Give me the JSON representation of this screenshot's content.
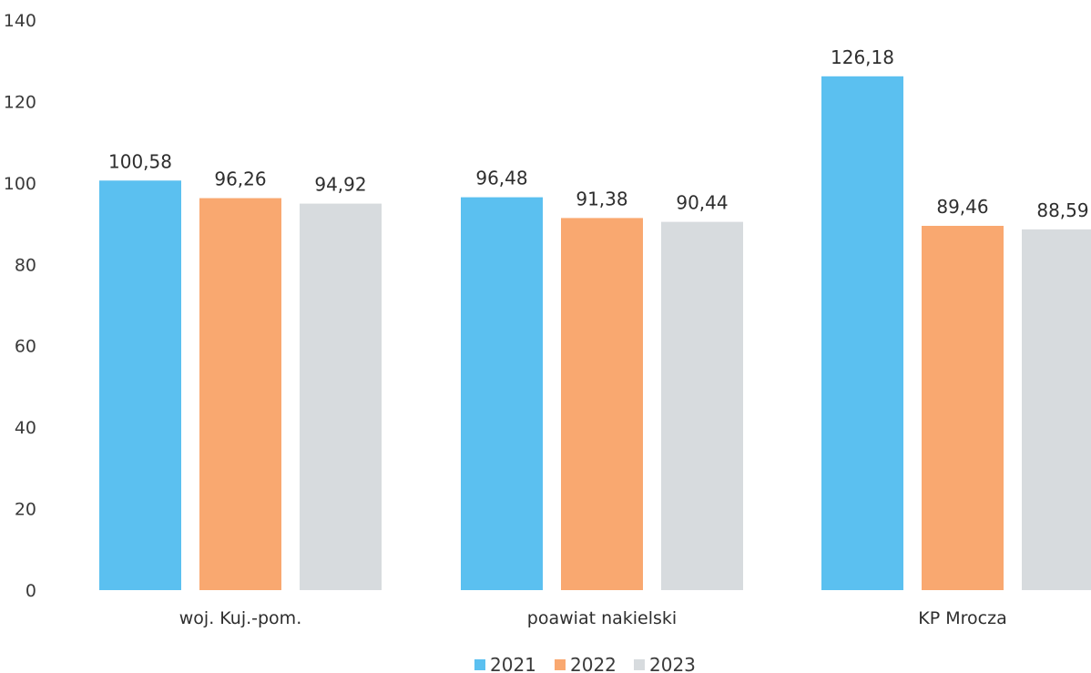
{
  "chart_data": {
    "type": "bar",
    "categories": [
      "woj. Kuj.-pom.",
      "poawiat nakielski",
      "KP Mrocza"
    ],
    "series": [
      {
        "name": "2021",
        "values": [
          100.58,
          96.48,
          126.18
        ],
        "labels": [
          "100,58",
          "96,48",
          "126,18"
        ],
        "color": "#5bc0f0"
      },
      {
        "name": "2022",
        "values": [
          96.26,
          91.38,
          89.46
        ],
        "labels": [
          "96,26",
          "91,38",
          "89,46"
        ],
        "color": "#f9a870"
      },
      {
        "name": "2023",
        "values": [
          94.92,
          90.44,
          88.59
        ],
        "labels": [
          "94,92",
          "90,44",
          "88,59"
        ],
        "color": "#d7dbde"
      }
    ],
    "y_ticks": [
      "0",
      "20",
      "40",
      "60",
      "80",
      "100",
      "120",
      "140"
    ],
    "ylim": [
      0,
      140
    ],
    "grid": false,
    "legend_position": "bottom-center"
  }
}
